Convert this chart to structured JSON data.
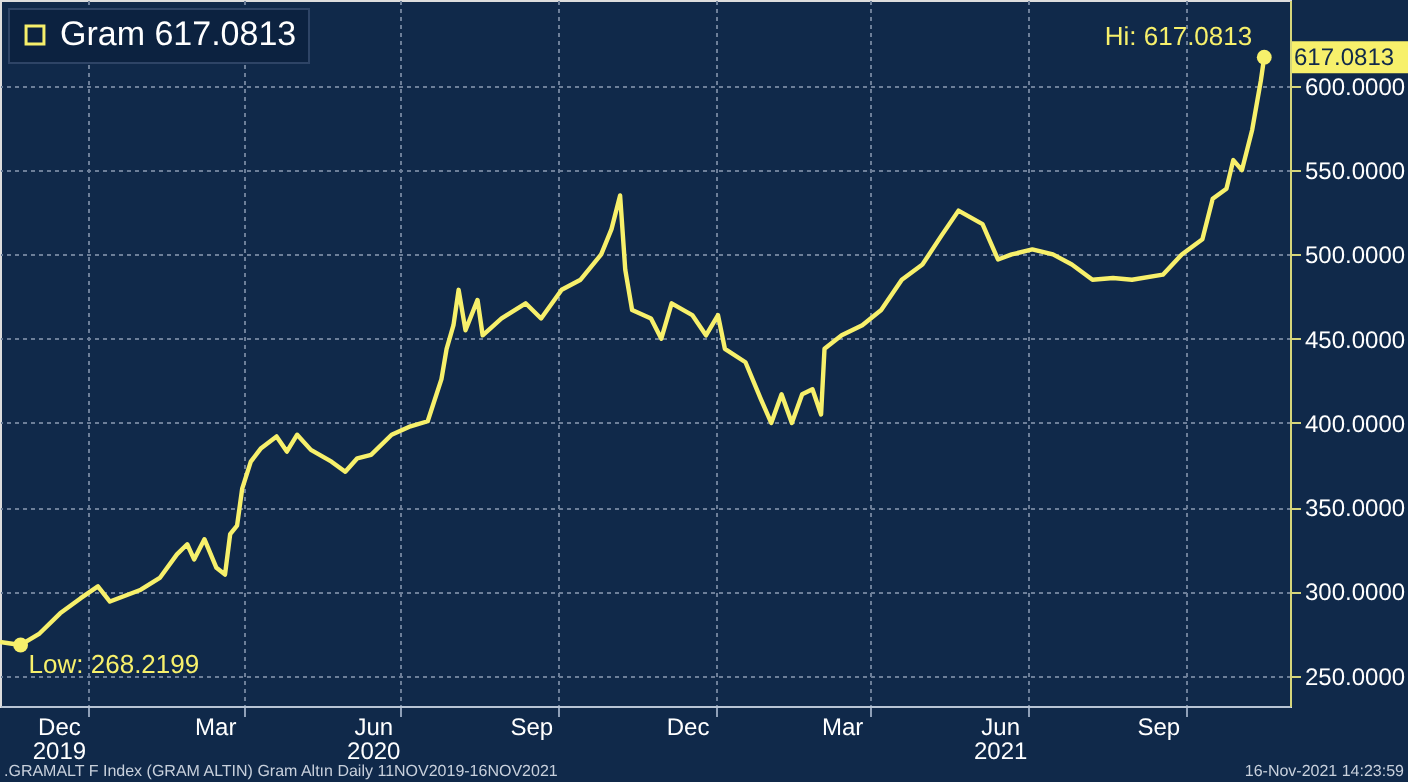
{
  "chart_data": {
    "type": "line",
    "x": [
      "2019-11-11",
      "2019-11-23",
      "2019-12-04",
      "2019-12-16",
      "2019-12-28",
      "2020-01-07",
      "2020-01-14",
      "2020-02-01",
      "2020-02-12",
      "2020-02-22",
      "2020-02-28",
      "2020-03-03",
      "2020-03-09",
      "2020-03-16",
      "2020-03-21",
      "2020-03-24",
      "2020-03-28",
      "2020-03-31",
      "2020-04-05",
      "2020-04-11",
      "2020-04-20",
      "2020-04-26",
      "2020-05-02",
      "2020-05-10",
      "2020-05-22",
      "2020-05-30",
      "2020-06-06",
      "2020-06-14",
      "2020-06-26",
      "2020-07-07",
      "2020-07-17",
      "2020-07-25",
      "2020-07-28",
      "2020-08-01",
      "2020-08-04",
      "2020-08-08",
      "2020-08-15",
      "2020-08-18",
      "2020-08-29",
      "2020-09-12",
      "2020-09-21",
      "2020-10-03",
      "2020-10-14",
      "2020-10-26",
      "2020-11-01",
      "2020-11-06",
      "2020-11-09",
      "2020-11-13",
      "2020-11-24",
      "2020-11-30",
      "2020-12-06",
      "2020-12-18",
      "2020-12-26",
      "2021-01-02",
      "2021-01-06",
      "2021-01-18",
      "2021-01-27",
      "2021-02-02",
      "2021-02-08",
      "2021-02-14",
      "2021-02-20",
      "2021-02-26",
      "2021-03-03",
      "2021-03-05",
      "2021-03-15",
      "2021-03-27",
      "2021-04-07",
      "2021-04-19",
      "2021-05-01",
      "2021-05-12",
      "2021-05-22",
      "2021-06-05",
      "2021-06-14",
      "2021-06-22",
      "2021-07-04",
      "2021-07-16",
      "2021-07-27",
      "2021-08-08",
      "2021-08-20",
      "2021-08-31",
      "2021-09-18",
      "2021-09-29",
      "2021-10-11",
      "2021-10-17",
      "2021-10-25",
      "2021-10-29",
      "2021-11-03",
      "2021-11-09",
      "2021-11-14",
      "2021-11-16"
    ],
    "series": [
      {
        "name": "Gram 617.0813",
        "color": "#f7f06b",
        "values": [
          270,
          268.2199,
          275,
          287,
          296,
          303,
          294,
          301,
          308,
          322,
          328,
          319,
          331,
          314,
          310,
          334,
          339,
          361,
          377,
          385,
          392,
          383,
          393,
          384,
          377,
          371,
          379,
          381,
          393,
          398,
          401,
          426,
          444,
          458,
          479,
          455,
          473,
          452,
          462,
          471,
          462,
          479,
          485,
          500,
          515,
          535,
          491,
          467,
          462,
          450,
          471,
          464,
          452,
          464,
          444,
          436,
          414,
          400,
          417,
          400,
          417,
          420,
          405,
          444,
          452,
          458,
          467,
          485,
          494,
          511,
          526,
          518,
          497,
          500,
          503,
          500,
          494,
          485,
          486,
          485,
          488,
          500,
          509,
          533,
          539,
          556,
          550,
          574,
          603,
          617.0813
        ]
      }
    ],
    "xlim": [
      "2019-11-11",
      "2021-12-01"
    ],
    "xticks": [
      {
        "value": "2019-12-15",
        "label": "Dec\n2019"
      },
      {
        "value": "2020-01-01",
        "label": null
      },
      {
        "value": "2020-03-15",
        "label": "Mar"
      },
      {
        "value": "2020-04-01",
        "label": null
      },
      {
        "value": "2020-06-15",
        "label": "Jun\n2020"
      },
      {
        "value": "2020-07-01",
        "label": null
      },
      {
        "value": "2020-09-15",
        "label": "Sep"
      },
      {
        "value": "2020-10-01",
        "label": null
      },
      {
        "value": "2020-12-15",
        "label": "Dec"
      },
      {
        "value": "2021-01-01",
        "label": null
      },
      {
        "value": "2021-03-15",
        "label": "Mar"
      },
      {
        "value": "2021-04-01",
        "label": null
      },
      {
        "value": "2021-06-15",
        "label": "Jun\n2021"
      },
      {
        "value": "2021-07-01",
        "label": null
      },
      {
        "value": "2021-09-15",
        "label": "Sep"
      },
      {
        "value": "2021-10-01",
        "label": null
      }
    ],
    "ylim": [
      232,
      651
    ],
    "yticks": [
      {
        "value": 250,
        "label": "250.0000"
      },
      {
        "value": 300,
        "label": "300.0000"
      },
      {
        "value": 350,
        "label": "350.0000"
      },
      {
        "value": 400,
        "label": "400.0000"
      },
      {
        "value": 450,
        "label": "450.0000"
      },
      {
        "value": 500,
        "label": "500.0000"
      },
      {
        "value": 550,
        "label": "550.0000"
      },
      {
        "value": 600,
        "label": "600.0000"
      }
    ],
    "grid": true,
    "legend": "top left",
    "marker": "none",
    "line_style": "solid",
    "annotations": [
      {
        "text": "Hi: 617.0813",
        "x": "2021-11-16",
        "y": 617.0813
      },
      {
        "text": "Low: 268.2199",
        "x": "2019-11-23",
        "y": 268.2199
      },
      {
        "text": "617.0813",
        "x": "2021-11-16",
        "y": 617.0813
      },
      ".GRAMALT F Index (GRAM ALTIN) Gram Altın  Daily 11NOV2019-16NOV2021",
      "16-Nov-2021 14:23:59"
    ]
  }
}
